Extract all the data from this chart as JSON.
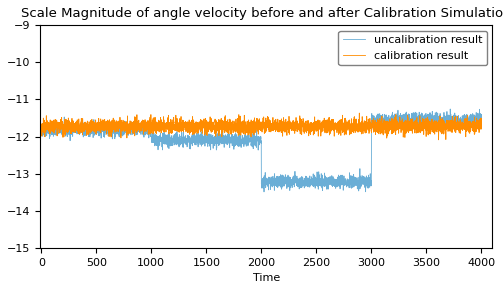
{
  "title": "Scale Magnitude of angle velocity before and after Calibration Simulation",
  "xlabel": "Time",
  "ylabel": "",
  "xlim": [
    -10,
    4100
  ],
  "ylim_bottom": -15,
  "ylim_top": -9,
  "yticks": [
    -15,
    -14,
    -13,
    -12,
    -11,
    -10,
    -9
  ],
  "xticks": [
    0,
    500,
    1000,
    1500,
    2000,
    2500,
    3000,
    3500,
    4000
  ],
  "blue_color": "#6aaed6",
  "orange_color": "#ff8c00",
  "legend_labels": [
    "uncalibration result",
    "calibration result"
  ],
  "n_points": 4001,
  "seed": 42,
  "segment_boundaries": [
    0,
    1000,
    2000,
    3000,
    4001
  ],
  "blue_levels": [
    -11.82,
    -12.1,
    -13.22,
    -11.55
  ],
  "orange_level": -11.72,
  "blue_noise": 0.09,
  "orange_noise": 0.1,
  "title_fontsize": 9.5,
  "legend_fontsize": 8,
  "tick_fontsize": 8
}
